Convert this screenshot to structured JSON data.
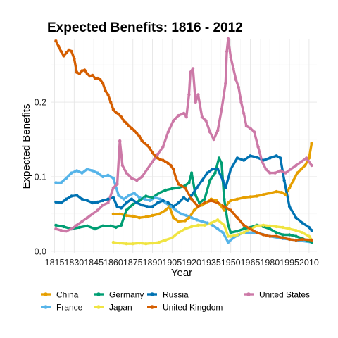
{
  "chart_data": {
    "type": "line",
    "title": "Expected Benefits: 1816 - 2012",
    "xlabel": "Year",
    "ylabel": "Expected Benefits",
    "xlim": [
      1812,
      2016
    ],
    "ylim": [
      -0.003,
      0.285
    ],
    "x_ticks": [
      1815,
      1830,
      1845,
      1860,
      1875,
      1890,
      1905,
      1920,
      1935,
      1950,
      1965,
      1980,
      1995,
      2010
    ],
    "y_ticks": [
      0.0,
      0.1,
      0.2
    ],
    "y_tick_labels": [
      "0.0",
      "0.1",
      "0.2"
    ],
    "grid": true,
    "legend_position": "bottom",
    "series": [
      {
        "name": "China",
        "color": "#E69F00",
        "x": [
          1860,
          1865,
          1870,
          1875,
          1880,
          1885,
          1890,
          1895,
          1900,
          1903,
          1906,
          1910,
          1915,
          1918,
          1922,
          1925,
          1928,
          1931,
          1935,
          1939,
          1942,
          1945,
          1948,
          1950,
          1955,
          1960,
          1965,
          1970,
          1975,
          1980,
          1985,
          1989,
          1992,
          1995,
          1998,
          2001,
          2004,
          2007,
          2010,
          2012
        ],
        "y": [
          0.05,
          0.05,
          0.048,
          0.047,
          0.045,
          0.046,
          0.048,
          0.05,
          0.055,
          0.06,
          0.045,
          0.04,
          0.041,
          0.045,
          0.055,
          0.06,
          0.062,
          0.065,
          0.07,
          0.068,
          0.062,
          0.055,
          0.065,
          0.068,
          0.07,
          0.072,
          0.073,
          0.074,
          0.076,
          0.078,
          0.08,
          0.079,
          0.076,
          0.085,
          0.095,
          0.105,
          0.11,
          0.115,
          0.125,
          0.145
        ]
      },
      {
        "name": "France",
        "color": "#56B4E9",
        "x": [
          1816,
          1820,
          1824,
          1828,
          1832,
          1836,
          1840,
          1844,
          1848,
          1852,
          1856,
          1860,
          1864,
          1868,
          1872,
          1876,
          1880,
          1884,
          1888,
          1892,
          1896,
          1900,
          1904,
          1908,
          1912,
          1916,
          1920,
          1924,
          1928,
          1932,
          1936,
          1940,
          1944,
          1948,
          1952,
          1956,
          1960,
          1970,
          1980,
          1990,
          2000,
          2012
        ],
        "y": [
          0.092,
          0.092,
          0.098,
          0.105,
          0.108,
          0.105,
          0.11,
          0.108,
          0.105,
          0.1,
          0.102,
          0.098,
          0.075,
          0.07,
          0.075,
          0.078,
          0.072,
          0.07,
          0.068,
          0.072,
          0.07,
          0.065,
          0.06,
          0.055,
          0.05,
          0.048,
          0.045,
          0.042,
          0.04,
          0.038,
          0.035,
          0.03,
          0.025,
          0.012,
          0.018,
          0.022,
          0.025,
          0.025,
          0.02,
          0.017,
          0.015,
          0.012
        ]
      },
      {
        "name": "Germany",
        "color": "#009E73",
        "x": [
          1816,
          1822,
          1828,
          1834,
          1840,
          1846,
          1852,
          1858,
          1862,
          1866,
          1870,
          1875,
          1880,
          1885,
          1890,
          1895,
          1900,
          1905,
          1910,
          1915,
          1918,
          1920,
          1923,
          1926,
          1930,
          1934,
          1938,
          1941,
          1943,
          1945,
          1948,
          1950,
          1955,
          1960,
          1965,
          1970,
          1975,
          1980,
          1985,
          1990,
          1995,
          2000,
          2005,
          2012
        ],
        "y": [
          0.035,
          0.033,
          0.03,
          0.032,
          0.034,
          0.03,
          0.034,
          0.034,
          0.032,
          0.035,
          0.055,
          0.063,
          0.068,
          0.074,
          0.072,
          0.078,
          0.082,
          0.084,
          0.085,
          0.088,
          0.092,
          0.105,
          0.075,
          0.065,
          0.07,
          0.095,
          0.105,
          0.125,
          0.118,
          0.07,
          0.035,
          0.025,
          0.027,
          0.03,
          0.032,
          0.035,
          0.033,
          0.03,
          0.025,
          0.022,
          0.022,
          0.02,
          0.017,
          0.012
        ]
      },
      {
        "name": "Japan",
        "color": "#F0E442",
        "x": [
          1860,
          1865,
          1870,
          1875,
          1880,
          1885,
          1890,
          1895,
          1900,
          1905,
          1910,
          1915,
          1920,
          1925,
          1930,
          1935,
          1940,
          1945,
          1948,
          1950,
          1955,
          1960,
          1965,
          1970,
          1975,
          1980,
          1985,
          1990,
          1995,
          2000,
          2005,
          2010,
          2012
        ],
        "y": [
          0.012,
          0.011,
          0.01,
          0.01,
          0.011,
          0.01,
          0.011,
          0.012,
          0.015,
          0.018,
          0.025,
          0.03,
          0.033,
          0.035,
          0.035,
          0.038,
          0.042,
          0.035,
          0.02,
          0.02,
          0.022,
          0.025,
          0.03,
          0.034,
          0.035,
          0.034,
          0.033,
          0.032,
          0.03,
          0.028,
          0.025,
          0.02,
          0.015
        ]
      },
      {
        "name": "Russia",
        "color": "#0072B2",
        "x": [
          1816,
          1820,
          1824,
          1828,
          1832,
          1836,
          1840,
          1844,
          1848,
          1852,
          1856,
          1860,
          1863,
          1866,
          1870,
          1874,
          1878,
          1882,
          1886,
          1890,
          1894,
          1898,
          1902,
          1906,
          1910,
          1914,
          1917,
          1920,
          1924,
          1928,
          1932,
          1936,
          1940,
          1944,
          1946,
          1950,
          1955,
          1960,
          1965,
          1970,
          1975,
          1980,
          1985,
          1988,
          1991,
          1995,
          2000,
          2005,
          2010,
          2012
        ],
        "y": [
          0.066,
          0.065,
          0.07,
          0.074,
          0.075,
          0.07,
          0.068,
          0.065,
          0.066,
          0.068,
          0.07,
          0.072,
          0.06,
          0.058,
          0.065,
          0.07,
          0.065,
          0.062,
          0.06,
          0.06,
          0.065,
          0.068,
          0.065,
          0.06,
          0.065,
          0.072,
          0.068,
          0.075,
          0.085,
          0.095,
          0.105,
          0.11,
          0.11,
          0.095,
          0.085,
          0.11,
          0.125,
          0.122,
          0.128,
          0.126,
          0.122,
          0.125,
          0.128,
          0.125,
          0.095,
          0.06,
          0.045,
          0.038,
          0.032,
          0.028
        ]
      },
      {
        "name": "United Kingdom",
        "color": "#D55E00",
        "x": [
          1816,
          1818,
          1820,
          1822,
          1824,
          1826,
          1828,
          1830,
          1832,
          1834,
          1836,
          1838,
          1840,
          1842,
          1844,
          1846,
          1848,
          1850,
          1852,
          1854,
          1856,
          1858,
          1860,
          1862,
          1864,
          1866,
          1868,
          1870,
          1872,
          1874,
          1876,
          1878,
          1880,
          1882,
          1884,
          1886,
          1888,
          1890,
          1892,
          1894,
          1896,
          1898,
          1900,
          1902,
          1904,
          1906,
          1908,
          1910,
          1915,
          1920,
          1925,
          1930,
          1935,
          1940,
          1945,
          1950,
          1955,
          1960,
          1965,
          1970,
          1975,
          1980,
          1985,
          1990,
          1995,
          2000,
          2005,
          2012
        ],
        "y": [
          0.282,
          0.275,
          0.268,
          0.262,
          0.266,
          0.27,
          0.268,
          0.258,
          0.24,
          0.238,
          0.242,
          0.243,
          0.238,
          0.235,
          0.236,
          0.232,
          0.232,
          0.23,
          0.225,
          0.215,
          0.21,
          0.2,
          0.19,
          0.186,
          0.184,
          0.18,
          0.175,
          0.172,
          0.168,
          0.165,
          0.162,
          0.158,
          0.154,
          0.148,
          0.145,
          0.142,
          0.138,
          0.132,
          0.128,
          0.125,
          0.123,
          0.122,
          0.12,
          0.118,
          0.115,
          0.11,
          0.098,
          0.09,
          0.085,
          0.07,
          0.06,
          0.065,
          0.068,
          0.065,
          0.06,
          0.055,
          0.045,
          0.035,
          0.03,
          0.025,
          0.022,
          0.02,
          0.02,
          0.018,
          0.016,
          0.015,
          0.016,
          0.015
        ]
      },
      {
        "name": "United States",
        "color": "#CC79A7",
        "x": [
          1816,
          1820,
          1824,
          1828,
          1832,
          1836,
          1840,
          1844,
          1848,
          1852,
          1856,
          1860,
          1863,
          1865,
          1867,
          1870,
          1874,
          1878,
          1882,
          1886,
          1890,
          1894,
          1898,
          1902,
          1906,
          1910,
          1914,
          1916,
          1918,
          1919,
          1921,
          1923,
          1925,
          1928,
          1931,
          1934,
          1937,
          1940,
          1943,
          1946,
          1947,
          1948,
          1950,
          1952,
          1954,
          1956,
          1958,
          1960,
          1962,
          1965,
          1968,
          1971,
          1974,
          1977,
          1980,
          1984,
          1988,
          1992,
          1996,
          2000,
          2004,
          2008,
          2012
        ],
        "y": [
          0.03,
          0.028,
          0.027,
          0.03,
          0.035,
          0.04,
          0.045,
          0.05,
          0.055,
          0.062,
          0.065,
          0.085,
          0.09,
          0.148,
          0.115,
          0.105,
          0.098,
          0.095,
          0.1,
          0.11,
          0.12,
          0.13,
          0.14,
          0.16,
          0.175,
          0.182,
          0.185,
          0.18,
          0.21,
          0.24,
          0.245,
          0.2,
          0.21,
          0.18,
          0.175,
          0.16,
          0.15,
          0.162,
          0.19,
          0.225,
          0.268,
          0.285,
          0.26,
          0.245,
          0.23,
          0.22,
          0.2,
          0.185,
          0.168,
          0.165,
          0.16,
          0.14,
          0.12,
          0.11,
          0.105,
          0.105,
          0.108,
          0.105,
          0.11,
          0.115,
          0.12,
          0.125,
          0.115
        ]
      }
    ],
    "legend_order": [
      "China",
      "France",
      "Germany",
      "Japan",
      "Russia",
      "United Kingdom",
      "United States"
    ]
  }
}
